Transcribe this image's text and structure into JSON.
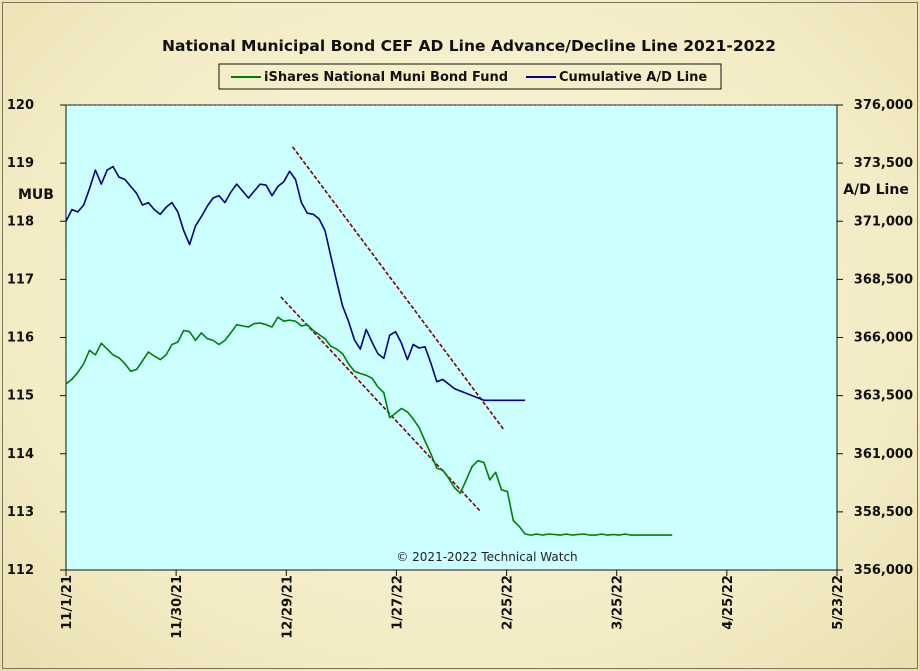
{
  "chart_data": {
    "type": "line",
    "title": "National Municipal Bond CEF AD Line Advance/Decline Line 2021-2022",
    "ylabel_left": "MUB",
    "ylabel_right": "A/D Line",
    "annotation": "© 2021-2022 Technical Watch",
    "x_ticks": [
      "11/1/21",
      "11/30/21",
      "12/29/21",
      "1/27/22",
      "2/25/22",
      "3/25/22",
      "4/25/22",
      "5/23/22"
    ],
    "ylim_left": [
      112,
      120
    ],
    "yticks_left": [
      "112",
      "113",
      "114",
      "115",
      "116",
      "117",
      "118",
      "119",
      "120"
    ],
    "ylim_right": [
      356000,
      376000
    ],
    "yticks_right": [
      "356,000",
      "358,500",
      "361,000",
      "363,500",
      "366,000",
      "368,500",
      "371,000",
      "373,500",
      "376,000"
    ],
    "grid": false,
    "legend_position": "top-center",
    "background_color": "#ccffff",
    "series": [
      {
        "name": "iShares National Muni Bond Fund",
        "axis": "left",
        "color": "#008000",
        "x": [
          0,
          1,
          2,
          3,
          4,
          5,
          6,
          7,
          8,
          9,
          10,
          11,
          12,
          13,
          14,
          15,
          16,
          17,
          18,
          19,
          20,
          21,
          22,
          23,
          24,
          25,
          26,
          27,
          28,
          29,
          30,
          31,
          32,
          33,
          34,
          35,
          36,
          37,
          38,
          39,
          40,
          41,
          42,
          43,
          44,
          45,
          46,
          47,
          48,
          49,
          50,
          51,
          52,
          53,
          54,
          55,
          56,
          57,
          58,
          59,
          60,
          61,
          62,
          63,
          64,
          65,
          66,
          67,
          68,
          69,
          70,
          71,
          72,
          73,
          74,
          75,
          76,
          77,
          78,
          79,
          80,
          81,
          82,
          83,
          84,
          85,
          86,
          87,
          88,
          89,
          90,
          91,
          92,
          93,
          94,
          95,
          96,
          97,
          98,
          99,
          100,
          101,
          102,
          103
        ],
        "values": [
          115.2,
          115.28,
          115.4,
          115.55,
          115.78,
          115.7,
          115.9,
          115.8,
          115.7,
          115.65,
          115.55,
          115.42,
          115.45,
          115.6,
          115.75,
          115.68,
          115.62,
          115.7,
          115.88,
          115.92,
          116.12,
          116.1,
          115.95,
          116.08,
          115.98,
          115.95,
          115.88,
          115.95,
          116.08,
          116.22,
          116.2,
          116.18,
          116.24,
          116.25,
          116.22,
          116.18,
          116.35,
          116.28,
          116.3,
          116.28,
          116.2,
          116.22,
          116.12,
          116.05,
          115.98,
          115.85,
          115.8,
          115.72,
          115.55,
          115.42,
          115.38,
          115.35,
          115.3,
          115.15,
          115.05,
          114.62,
          114.7,
          114.78,
          114.72,
          114.6,
          114.45,
          114.22,
          114.0,
          113.75,
          113.72,
          113.58,
          113.42,
          113.32,
          113.55,
          113.78,
          113.88,
          113.85,
          113.55,
          113.68,
          113.38,
          113.35,
          112.85,
          112.75,
          112.62,
          112.6,
          112.62,
          112.6,
          112.62,
          112.61,
          112.6,
          112.62,
          112.6,
          112.61,
          112.62,
          112.6,
          112.6,
          112.62,
          112.6,
          112.61,
          112.6,
          112.62,
          112.6,
          112.6,
          112.6,
          112.6,
          112.6,
          112.6,
          112.6,
          112.6
        ]
      },
      {
        "name": "Cumulative A/D Line",
        "axis": "right",
        "color": "#00008b",
        "x": [
          0,
          1,
          2,
          3,
          4,
          5,
          6,
          7,
          8,
          9,
          10,
          11,
          12,
          13,
          14,
          15,
          16,
          17,
          18,
          19,
          20,
          21,
          22,
          23,
          24,
          25,
          26,
          27,
          28,
          29,
          30,
          31,
          32,
          33,
          34,
          35,
          36,
          37,
          38,
          39,
          40,
          41,
          42,
          43,
          44,
          45,
          46,
          47,
          48,
          49,
          50,
          51,
          52,
          53,
          54,
          55,
          56,
          57,
          58,
          59,
          60,
          61,
          62,
          63,
          64,
          65,
          66,
          67,
          68,
          69,
          70,
          71,
          72,
          73,
          74,
          75,
          76,
          77,
          78
        ],
        "values": [
          371000,
          371500,
          371400,
          371700,
          372400,
          373200,
          372600,
          373200,
          373350,
          372900,
          372800,
          372500,
          372200,
          371700,
          371800,
          371500,
          371300,
          371600,
          371800,
          371400,
          370600,
          370000,
          370800,
          371200,
          371650,
          372000,
          372100,
          371800,
          372250,
          372600,
          372300,
          372000,
          372300,
          372600,
          372550,
          372100,
          372500,
          372700,
          373150,
          372800,
          371800,
          371350,
          371300,
          371100,
          370600,
          369500,
          368400,
          367350,
          366700,
          365900,
          365500,
          366350,
          365800,
          365300,
          365100,
          366100,
          366250,
          365750,
          365050,
          365700,
          365550,
          365600,
          364900,
          364100,
          364200,
          364000,
          363800,
          363700,
          363600,
          363500,
          363400,
          363300,
          363300,
          363300,
          363300,
          363300,
          363300,
          363300,
          363300
        ]
      }
    ],
    "trendlines": [
      {
        "axis": "right",
        "color": "#800000",
        "x": [
          38.5,
          74.5
        ],
        "values": [
          374200,
          362000
        ]
      },
      {
        "axis": "left",
        "color": "#800000",
        "x": [
          36.5,
          70.5
        ],
        "values": [
          116.7,
          113.0
        ]
      }
    ],
    "x_axis_range": [
      0,
      131
    ]
  }
}
